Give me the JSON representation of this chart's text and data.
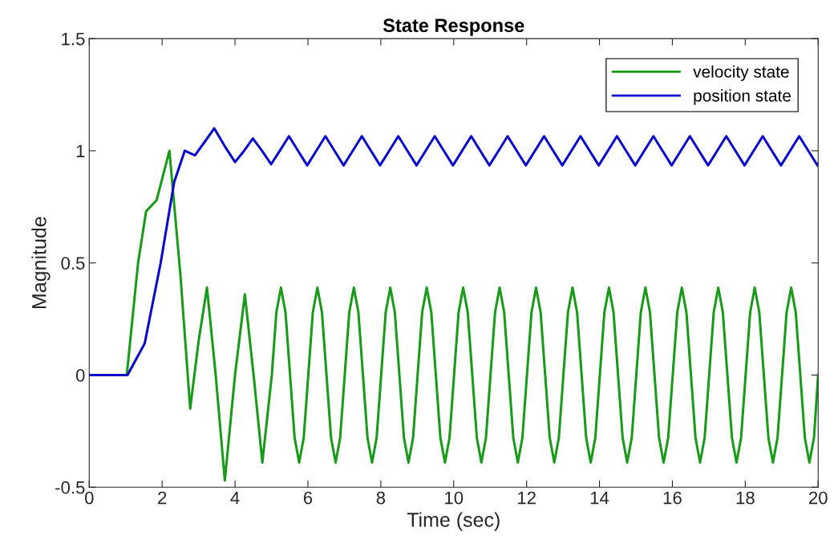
{
  "chart_data": {
    "type": "line",
    "title": "State Response",
    "xlabel": "Time (sec)",
    "ylabel": "Magnitude",
    "xlim": [
      0,
      20
    ],
    "xticks": [
      0,
      2,
      4,
      6,
      8,
      10,
      12,
      14,
      16,
      18,
      20
    ],
    "ylim": [
      -0.5,
      1.5
    ],
    "yticks": [
      -0.5,
      0,
      0.5,
      1,
      1.5
    ],
    "grid": false,
    "legend": "top right",
    "marker": "none",
    "line_style": "solid",
    "series": [
      {
        "name": "velocity state",
        "color": "#1a9a1a",
        "x": [
          0,
          1.03,
          1.34,
          1.56,
          1.85,
          2.2,
          2.5,
          2.77,
          3.0,
          3.23,
          3.47,
          3.72,
          4.0,
          4.27,
          4.51,
          4.75,
          5.01,
          5.135,
          5.26,
          5.385,
          5.51,
          5.635,
          5.76,
          5.885,
          6.01,
          6.135,
          6.26,
          6.385,
          6.51,
          6.635,
          6.76,
          6.885,
          7.01,
          7.135,
          7.26,
          7.385,
          7.51,
          7.635,
          7.76,
          7.885,
          8.01,
          8.135,
          8.26,
          8.385,
          8.51,
          8.635,
          8.76,
          8.885,
          9.01,
          9.135,
          9.26,
          9.385,
          9.51,
          9.635,
          9.76,
          9.885,
          10.01,
          10.135,
          10.26,
          10.385,
          10.51,
          10.635,
          10.76,
          10.885,
          11.01,
          11.135,
          11.26,
          11.385,
          11.51,
          11.635,
          11.76,
          11.885,
          12.01,
          12.135,
          12.26,
          12.385,
          12.51,
          12.635,
          12.76,
          12.885,
          13.01,
          13.135,
          13.26,
          13.385,
          13.51,
          13.635,
          13.76,
          13.885,
          14.01,
          14.135,
          14.26,
          14.385,
          14.51,
          14.635,
          14.76,
          14.885,
          15.01,
          15.135,
          15.26,
          15.385,
          15.51,
          15.635,
          15.76,
          15.885,
          16.01,
          16.135,
          16.26,
          16.385,
          16.51,
          16.635,
          16.76,
          16.885,
          17.01,
          17.135,
          17.26,
          17.385,
          17.51,
          17.635,
          17.76,
          17.885,
          18.01,
          18.135,
          18.26,
          18.385,
          18.51,
          18.635,
          18.76,
          18.885,
          19.01,
          19.135,
          19.26,
          19.385,
          19.51,
          19.635,
          19.76,
          19.885,
          20.0
        ],
        "values": [
          0,
          0,
          0.5,
          0.73,
          0.78,
          1.0,
          0.45,
          -0.15,
          0.15,
          0.39,
          0,
          -0.47,
          0,
          0.36,
          0,
          -0.39,
          0,
          0.28,
          0.39,
          0.28,
          0,
          -0.28,
          -0.39,
          -0.28,
          0,
          0.28,
          0.39,
          0.28,
          0,
          -0.28,
          -0.39,
          -0.28,
          0,
          0.28,
          0.39,
          0.28,
          0,
          -0.28,
          -0.39,
          -0.28,
          0,
          0.28,
          0.39,
          0.28,
          0,
          -0.28,
          -0.39,
          -0.28,
          0,
          0.28,
          0.39,
          0.28,
          0,
          -0.28,
          -0.39,
          -0.28,
          0,
          0.28,
          0.39,
          0.28,
          0,
          -0.28,
          -0.39,
          -0.28,
          0,
          0.28,
          0.39,
          0.28,
          0,
          -0.28,
          -0.39,
          -0.28,
          0,
          0.28,
          0.39,
          0.28,
          0,
          -0.28,
          -0.39,
          -0.28,
          0,
          0.28,
          0.39,
          0.28,
          0,
          -0.28,
          -0.39,
          -0.28,
          0,
          0.28,
          0.39,
          0.28,
          0,
          -0.28,
          -0.39,
          -0.28,
          0,
          0.28,
          0.39,
          0.28,
          0,
          -0.28,
          -0.39,
          -0.28,
          0,
          0.28,
          0.39,
          0.28,
          0,
          -0.28,
          -0.39,
          -0.28,
          0,
          0.28,
          0.39,
          0.28,
          0,
          -0.28,
          -0.39,
          -0.28,
          0,
          0.28,
          0.39,
          0.28,
          0,
          -0.28,
          -0.39,
          -0.28,
          0,
          0.28,
          0.39,
          0.28,
          0,
          -0.28,
          -0.39,
          -0.28,
          0
        ]
      },
      {
        "name": "position state",
        "color": "#0a0ac8",
        "x": [
          0,
          1.05,
          1.52,
          1.96,
          2.33,
          2.62,
          2.9,
          3.17,
          3.43,
          3.72,
          4.0,
          4.25,
          4.49,
          4.74,
          4.99,
          5.23,
          5.48,
          5.73,
          5.98,
          6.23,
          6.48,
          6.73,
          6.98,
          7.23,
          7.48,
          7.73,
          7.98,
          8.23,
          8.48,
          8.73,
          8.98,
          9.23,
          9.48,
          9.73,
          9.98,
          10.23,
          10.48,
          10.73,
          10.98,
          11.23,
          11.48,
          11.73,
          11.98,
          12.23,
          12.48,
          12.73,
          12.98,
          13.23,
          13.48,
          13.73,
          13.98,
          14.23,
          14.48,
          14.73,
          14.98,
          15.23,
          15.48,
          15.73,
          15.98,
          16.23,
          16.48,
          16.73,
          16.98,
          17.23,
          17.48,
          17.73,
          17.98,
          18.23,
          18.48,
          18.73,
          18.98,
          19.23,
          19.48,
          19.73,
          19.98,
          20.0
        ],
        "values": [
          0,
          0,
          0.14,
          0.5,
          0.86,
          1.0,
          0.98,
          1.04,
          1.1,
          1.02,
          0.95,
          1.0,
          1.055,
          1.0,
          0.94,
          1.0,
          1.065,
          1.0,
          0.935,
          1.0,
          1.065,
          1.0,
          0.935,
          1.0,
          1.065,
          1.0,
          0.935,
          1.0,
          1.065,
          1.0,
          0.935,
          1.0,
          1.065,
          1.0,
          0.935,
          1.0,
          1.065,
          1.0,
          0.935,
          1.0,
          1.065,
          1.0,
          0.935,
          1.0,
          1.065,
          1.0,
          0.935,
          1.0,
          1.065,
          1.0,
          0.935,
          1.0,
          1.065,
          1.0,
          0.935,
          1.0,
          1.065,
          1.0,
          0.935,
          1.0,
          1.065,
          1.0,
          0.935,
          1.0,
          1.065,
          1.0,
          0.935,
          1.0,
          1.065,
          1.0,
          0.935,
          1.0,
          1.065,
          1.0,
          0.935,
          0.94
        ]
      }
    ]
  }
}
